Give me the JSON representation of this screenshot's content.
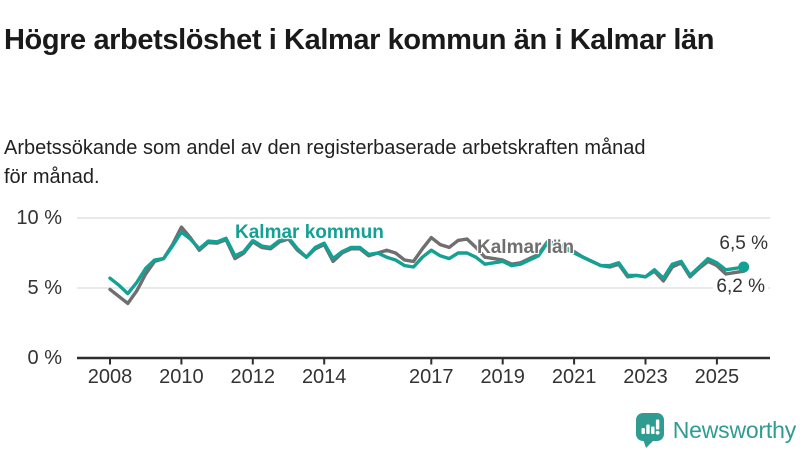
{
  "title": "Högre arbetslöshet i Kalmar kommun än i Kalmar län",
  "subtitle": "Arbetssökande som andel av den registerbaserade arbetskraften månad för månad.",
  "chart_data": {
    "type": "line",
    "title": "",
    "xlabel": "",
    "ylabel": "",
    "grid": "horizontal-only",
    "legend_position": "inline-labels",
    "x_axis": {
      "start_year": 2008,
      "step_years": 0.25,
      "ticks": [
        2008,
        2010,
        2012,
        2014,
        2017,
        2019,
        2021,
        2023,
        2025
      ]
    },
    "y_axis": {
      "lim": [
        0,
        10
      ],
      "ticks": [
        0,
        5,
        10
      ],
      "tick_labels": [
        "0 %",
        "5 %",
        "10 %"
      ]
    },
    "series": [
      {
        "name": "Kalmar län",
        "color": "#6F6F6F",
        "end_label": "6,2 %",
        "values": [
          4.9,
          4.4,
          3.9,
          4.8,
          6.0,
          6.9,
          7.1,
          8.1,
          9.35,
          8.6,
          7.7,
          8.25,
          8.2,
          8.45,
          7.1,
          7.5,
          8.3,
          7.9,
          7.8,
          8.3,
          8.5,
          7.7,
          7.2,
          7.8,
          8.1,
          6.9,
          7.5,
          7.8,
          7.8,
          7.3,
          7.5,
          7.7,
          7.5,
          7.0,
          6.9,
          7.8,
          8.6,
          8.1,
          7.9,
          8.4,
          8.5,
          7.9,
          7.2,
          7.1,
          7.0,
          6.7,
          6.8,
          7.1,
          7.4,
          8.3,
          8.2,
          7.9,
          7.6,
          7.2,
          6.9,
          6.6,
          6.5,
          6.7,
          5.8,
          5.9,
          5.8,
          6.2,
          5.5,
          6.5,
          6.8,
          5.8,
          6.4,
          6.9,
          6.6,
          6.0,
          6.1,
          6.2
        ]
      },
      {
        "name": "Kalmar kommun",
        "color": "#13A195",
        "end_label": "6,5 %",
        "marker_end": true,
        "values": [
          5.7,
          5.2,
          4.6,
          5.4,
          6.4,
          7.0,
          7.1,
          8.0,
          9.0,
          8.5,
          7.8,
          8.35,
          8.3,
          8.55,
          7.3,
          7.6,
          8.4,
          8.0,
          7.9,
          8.4,
          8.6,
          7.8,
          7.2,
          7.9,
          8.2,
          7.1,
          7.6,
          7.9,
          7.9,
          7.4,
          7.5,
          7.2,
          7.0,
          6.6,
          6.5,
          7.2,
          7.7,
          7.3,
          7.1,
          7.5,
          7.5,
          7.2,
          6.7,
          6.8,
          6.9,
          6.6,
          6.7,
          7.0,
          7.3,
          8.2,
          8.1,
          7.8,
          7.5,
          7.2,
          6.9,
          6.6,
          6.6,
          6.8,
          5.9,
          5.9,
          5.8,
          6.3,
          5.7,
          6.7,
          6.9,
          5.9,
          6.5,
          7.1,
          6.8,
          6.3,
          6.4,
          6.5
        ]
      }
    ]
  },
  "branding": {
    "logo_text": "Newsworthy",
    "brand_color": "#2F9C92"
  }
}
